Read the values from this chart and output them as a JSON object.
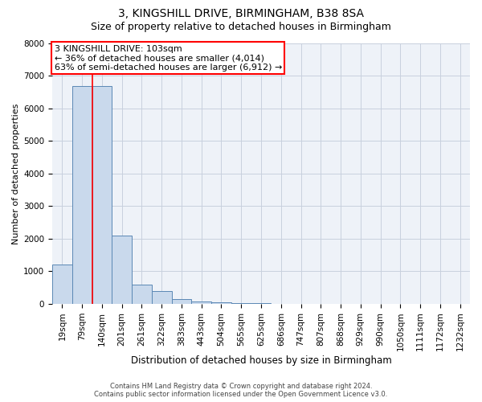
{
  "title1": "3, KINGSHILL DRIVE, BIRMINGHAM, B38 8SA",
  "title2": "Size of property relative to detached houses in Birmingham",
  "xlabel": "Distribution of detached houses by size in Birmingham",
  "ylabel": "Number of detached properties",
  "bin_labels": [
    "19sqm",
    "79sqm",
    "140sqm",
    "201sqm",
    "261sqm",
    "322sqm",
    "383sqm",
    "443sqm",
    "504sqm",
    "565sqm",
    "625sqm",
    "686sqm",
    "747sqm",
    "807sqm",
    "868sqm",
    "929sqm",
    "990sqm",
    "1050sqm",
    "1111sqm",
    "1172sqm",
    "1232sqm"
  ],
  "bar_values": [
    1200,
    6700,
    6700,
    2100,
    600,
    400,
    150,
    80,
    45,
    35,
    30,
    8,
    3,
    1,
    0,
    0,
    0,
    0,
    0,
    0,
    0
  ],
  "bar_color": "#c9d9ec",
  "bar_edge_color": "#5b88b5",
  "red_line_x": 1.5,
  "ylim": [
    0,
    8000
  ],
  "yticks": [
    0,
    1000,
    2000,
    3000,
    4000,
    5000,
    6000,
    7000,
    8000
  ],
  "annotation_title": "3 KINGSHILL DRIVE: 103sqm",
  "annotation_line1": "← 36% of detached houses are smaller (4,014)",
  "annotation_line2": "63% of semi-detached houses are larger (6,912) →",
  "footer1": "Contains HM Land Registry data © Crown copyright and database right 2024.",
  "footer2": "Contains public sector information licensed under the Open Government Licence v3.0.",
  "background_color": "#eef2f8",
  "grid_color": "#c8d0de",
  "title1_fontsize": 10,
  "title2_fontsize": 9,
  "xlabel_fontsize": 8.5,
  "ylabel_fontsize": 8,
  "tick_fontsize": 7.5,
  "annotation_fontsize": 8
}
